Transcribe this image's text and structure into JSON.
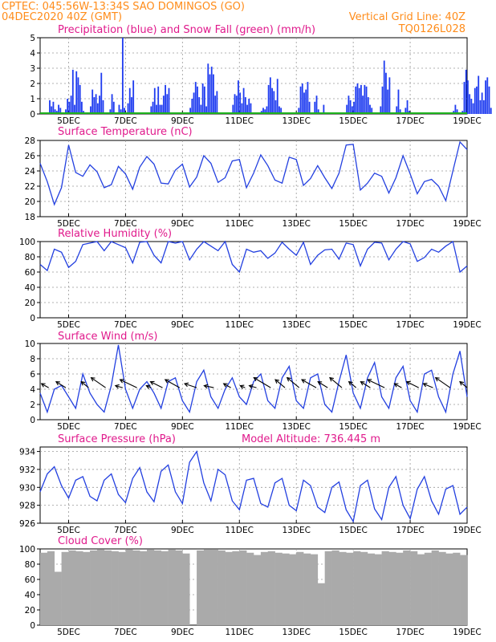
{
  "header": {
    "line1_left": "CPTEC:  045:56W-13:34S  SAO DOMINGOS (GO)",
    "line2_left": "04DEC2020 40Z (GMT)",
    "line2_right": "Vertical Grid Line: 40Z",
    "line3_right": "TQ0126L028"
  },
  "colors": {
    "header": "#ff8c1a",
    "title": "#e01a8c",
    "precip": "#1f3cf0",
    "snow": "#1db31d",
    "line": "#2340e0",
    "cloud": "#aaaaaa",
    "wind_arrow": "#000000"
  },
  "x_axis": {
    "labels": [
      "5DEC",
      "7DEC",
      "9DEC",
      "11DEC",
      "13DEC",
      "15DEC",
      "17DEC",
      "19DEC"
    ],
    "range_days": [
      4,
      19
    ]
  },
  "chart_data": [
    {
      "id": "precip",
      "type": "bar",
      "title": "Precipitation (blue) and Snow Fall (green) (mm/h)",
      "ylim": [
        0,
        5
      ],
      "yticks": [
        "0",
        "1",
        "2",
        "3",
        "4",
        "5"
      ],
      "series": [
        {
          "name": "Precipitation",
          "x_start_day": 4.0,
          "step_days": 0.0625,
          "values": [
            0,
            0,
            0,
            0,
            0,
            0.9,
            0.5,
            0.8,
            0.3,
            0.2,
            0.6,
            0.4,
            0,
            0,
            0.3,
            1.0,
            0.8,
            1.2,
            2.9,
            0.6,
            2.8,
            2.4,
            1.9,
            0.8,
            0.2,
            0,
            0,
            0,
            0.5,
            1.6,
            1.1,
            1.3,
            0.7,
            1.2,
            2.7,
            0.9,
            0,
            0,
            0,
            0.3,
            1.3,
            0.8,
            0,
            0,
            0.6,
            0.3,
            5.0,
            0.4,
            0,
            0.7,
            1.7,
            1.1,
            2.2,
            0,
            0,
            0,
            0,
            0,
            0,
            0,
            0,
            0,
            0.5,
            0.8,
            1.7,
            0.6,
            1.8,
            0.6,
            0.6,
            1.2,
            1.9,
            1.3,
            1.7,
            0,
            0,
            0,
            0,
            0,
            0,
            0,
            0,
            0,
            0,
            0,
            0.4,
            1.0,
            1.4,
            2.1,
            1.8,
            1.1,
            0.6,
            2.0,
            1.8,
            0.5,
            3.3,
            2.6,
            3.1,
            2.6,
            1.2,
            1.5,
            0,
            0,
            0,
            0,
            0,
            0,
            0,
            0,
            0.6,
            1.3,
            1.2,
            2.2,
            1.4,
            0.7,
            1.7,
            1.1,
            0.6,
            1.0,
            0.7,
            0,
            0,
            0,
            0,
            0,
            0.2,
            0.4,
            0.3,
            0.5,
            1.9,
            2.4,
            1.7,
            1.5,
            0.9,
            2.3,
            0.5,
            0.4,
            0,
            0,
            0,
            0,
            0,
            0,
            0,
            0,
            0,
            0.4,
            1.8,
            2.0,
            1.4,
            1.6,
            2.1,
            0.8,
            0,
            0,
            0.8,
            1.2,
            0.3,
            0,
            0,
            0.6,
            0,
            0,
            0,
            0,
            0,
            0,
            0,
            0,
            0,
            0,
            0,
            0,
            0.6,
            1.2,
            0.9,
            0.5,
            0.8,
            1.8,
            2.0,
            1.7,
            1.9,
            1.2,
            1.9,
            1.8,
            1.1,
            0.6,
            0.4,
            0,
            0,
            0,
            0,
            0.5,
            1.8,
            3.5,
            2.7,
            1.6,
            2.4,
            0,
            0,
            0,
            0.5,
            1.6,
            0.3,
            0,
            0,
            0.4,
            0.9,
            0.2,
            0,
            0,
            0,
            0,
            0,
            0,
            0,
            0,
            0,
            0,
            0,
            0,
            0,
            0,
            0,
            0,
            0,
            0,
            0,
            0,
            0,
            0,
            0,
            0,
            0.2,
            0.6,
            0.3,
            0,
            0,
            0.2,
            2.1,
            2.9,
            2.2,
            1.3,
            1.0,
            0.7,
            1.7,
            1.8,
            2.5,
            0.9,
            1.4,
            0.9,
            2.2,
            2.4,
            1.8,
            0.4,
            0,
            0,
            0,
            0,
            0,
            0,
            0.8,
            1.8,
            2.8,
            2.2,
            1.0,
            1.5,
            0.9,
            0.4,
            0,
            0.6,
            0.9,
            2.9,
            1.6,
            0.3,
            0,
            0,
            0,
            0,
            0,
            0.4,
            1.4,
            2.3,
            1.6,
            1.3,
            2.7,
            1.8,
            2.1,
            0.9,
            2.6,
            2.0,
            1.2,
            0,
            0,
            0,
            0.4,
            0.2,
            0.6,
            0,
            0,
            0,
            0,
            0,
            0,
            0,
            0.7,
            1.8,
            0.4,
            0.3,
            0.6,
            0.5,
            0,
            0,
            0,
            0,
            0,
            0,
            0,
            0,
            0,
            0,
            0,
            0,
            0,
            0.2,
            0.6,
            0.7,
            0.2
          ],
          "color": "#1f3cf0"
        },
        {
          "name": "Snow Fall",
          "values_all": 0,
          "color": "#1db31d"
        }
      ]
    },
    {
      "id": "temperature",
      "type": "line",
      "title": "Surface Temperature (nC)",
      "ylim": [
        18,
        28
      ],
      "yticks": [
        "18",
        "20",
        "22",
        "24",
        "26",
        "28"
      ],
      "x": [
        4.0,
        4.25,
        4.5,
        4.75,
        5.0,
        5.25,
        5.5,
        5.75,
        6.0,
        6.25,
        6.5,
        6.75,
        7.0,
        7.25,
        7.5,
        7.75,
        8.0,
        8.25,
        8.5,
        8.75,
        9.0,
        9.25,
        9.5,
        9.75,
        10.0,
        10.25,
        10.5,
        10.75,
        11.0,
        11.25,
        11.5,
        11.75,
        12.0,
        12.25,
        12.5,
        12.75,
        13.0,
        13.25,
        13.5,
        13.75,
        14.0,
        14.25,
        14.5,
        14.75,
        15.0,
        15.25,
        15.5,
        15.75,
        16.0,
        16.25,
        16.5,
        16.75,
        17.0,
        17.25,
        17.5,
        17.75,
        18.0,
        18.25,
        18.5,
        18.75,
        19.0
      ],
      "y": [
        25.0,
        22.6,
        19.6,
        21.8,
        27.4,
        23.8,
        23.3,
        24.8,
        23.9,
        21.8,
        22.2,
        24.6,
        23.6,
        21.6,
        24.5,
        25.9,
        24.9,
        22.4,
        22.3,
        24.1,
        24.9,
        21.9,
        23.2,
        26.0,
        25.0,
        22.5,
        23.1,
        25.3,
        25.5,
        21.8,
        23.7,
        26.1,
        24.7,
        22.8,
        22.4,
        25.8,
        25.5,
        22.1,
        23.0,
        24.7,
        23.1,
        21.7,
        23.7,
        27.4,
        27.5,
        21.5,
        22.4,
        23.7,
        23.3,
        21.1,
        23.1,
        26.0,
        23.6,
        21.0,
        22.6,
        22.9,
        22.0,
        20.1,
        24.0,
        27.8,
        26.8
      ]
    },
    {
      "id": "humidity",
      "type": "line",
      "title": "Relative Humidity (%)",
      "ylim": [
        0,
        100
      ],
      "yticks": [
        "0",
        "20",
        "40",
        "60",
        "80",
        "100"
      ],
      "x": [
        4.0,
        4.25,
        4.5,
        4.75,
        5.0,
        5.25,
        5.5,
        5.75,
        6.0,
        6.25,
        6.5,
        6.75,
        7.0,
        7.25,
        7.5,
        7.75,
        8.0,
        8.25,
        8.5,
        8.75,
        9.0,
        9.25,
        9.5,
        9.75,
        10.0,
        10.25,
        10.5,
        10.75,
        11.0,
        11.25,
        11.5,
        11.75,
        12.0,
        12.25,
        12.5,
        12.75,
        13.0,
        13.25,
        13.5,
        13.75,
        14.0,
        14.25,
        14.5,
        14.75,
        15.0,
        15.25,
        15.5,
        15.75,
        16.0,
        16.25,
        16.5,
        16.75,
        17.0,
        17.25,
        17.5,
        17.75,
        18.0,
        18.25,
        18.5,
        18.75,
        19.0
      ],
      "y": [
        70,
        62,
        90,
        86,
        66,
        74,
        96,
        98,
        100,
        88,
        100,
        96,
        92,
        72,
        99,
        100,
        82,
        72,
        100,
        98,
        100,
        76,
        90,
        100,
        94,
        88,
        100,
        70,
        60,
        90,
        86,
        88,
        78,
        85,
        99,
        90,
        82,
        99,
        70,
        82,
        89,
        90,
        77,
        98,
        96,
        68,
        90,
        99,
        98,
        76,
        90,
        100,
        97,
        74,
        79,
        90,
        86,
        94,
        100,
        60,
        68
      ]
    },
    {
      "id": "wind",
      "type": "line",
      "title": "Surface Wind (m/s)",
      "ylim": [
        0,
        10
      ],
      "yticks": [
        "0",
        "2",
        "4",
        "6",
        "8",
        "10"
      ],
      "x": [
        4.0,
        4.25,
        4.5,
        4.75,
        5.0,
        5.25,
        5.5,
        5.75,
        6.0,
        6.25,
        6.5,
        6.75,
        7.0,
        7.25,
        7.5,
        7.75,
        8.0,
        8.25,
        8.5,
        8.75,
        9.0,
        9.25,
        9.5,
        9.75,
        10.0,
        10.25,
        10.5,
        10.75,
        11.0,
        11.25,
        11.5,
        11.75,
        12.0,
        12.25,
        12.5,
        12.75,
        13.0,
        13.25,
        13.5,
        13.75,
        14.0,
        14.25,
        14.5,
        14.75,
        15.0,
        15.25,
        15.5,
        15.75,
        16.0,
        16.25,
        16.5,
        16.75,
        17.0,
        17.25,
        17.5,
        17.75,
        18.0,
        18.25,
        18.5,
        18.75,
        19.0
      ],
      "y": [
        3.5,
        1.0,
        4.0,
        4.5,
        3.0,
        1.5,
        6.0,
        3.5,
        2.0,
        1.0,
        4.5,
        9.8,
        4.0,
        1.5,
        4.0,
        5.0,
        3.5,
        1.5,
        5.0,
        5.5,
        2.5,
        1.0,
        5.0,
        6.5,
        3.0,
        1.5,
        4.0,
        5.5,
        3.0,
        2.0,
        5.0,
        6.0,
        2.5,
        1.5,
        5.5,
        7.0,
        2.5,
        1.5,
        5.5,
        6.0,
        2.0,
        1.0,
        5.0,
        8.5,
        3.5,
        1.5,
        5.5,
        7.5,
        3.0,
        1.5,
        5.5,
        7.0,
        2.5,
        1.0,
        6.0,
        6.5,
        3.0,
        1.0,
        6.0,
        9.0,
        3.0
      ],
      "arrows": {
        "x": [
          4.3,
          4.9,
          5.7,
          6.3,
          6.9,
          7.4,
          7.9,
          8.3,
          8.9,
          9.5,
          10.1,
          10.7,
          11.2,
          11.6,
          12.1,
          12.6,
          13.1,
          13.7,
          14.1,
          14.6,
          15.1,
          15.6,
          16.1,
          16.7,
          17.3,
          17.8,
          18.4,
          19.0
        ],
        "u": [
          -1.5,
          -2.0,
          -1.5,
          -3.0,
          -1.5,
          -3.5,
          -1.0,
          -2.5,
          -3.0,
          -2.5,
          -2.0,
          -1.5,
          -1.0,
          -1.5,
          -3.5,
          -2.0,
          -2.5,
          -3.0,
          -2.0,
          -2.5,
          -1.5,
          -2.0,
          -3.5,
          -1.5,
          -2.5,
          -2.0,
          -3.0,
          -1.5
        ],
        "v": [
          1.0,
          1.5,
          1.5,
          2.5,
          0.5,
          2.0,
          0.5,
          1.5,
          2.0,
          1.0,
          0.5,
          1.0,
          0.5,
          0.5,
          2.5,
          2.0,
          2.5,
          2.0,
          1.5,
          2.5,
          1.5,
          1.5,
          2.0,
          1.0,
          1.5,
          1.0,
          2.5,
          1.5
        ]
      }
    },
    {
      "id": "pressure",
      "type": "line",
      "title": "Surface Pressure (hPa)",
      "subtitle": "Model Altitude: 736.445 m",
      "ylim": [
        926,
        934.5
      ],
      "yticks": [
        "926",
        "928",
        "930",
        "932",
        "934"
      ],
      "x": [
        4.0,
        4.25,
        4.5,
        4.75,
        5.0,
        5.25,
        5.5,
        5.75,
        6.0,
        6.25,
        6.5,
        6.75,
        7.0,
        7.25,
        7.5,
        7.75,
        8.0,
        8.25,
        8.5,
        8.75,
        9.0,
        9.25,
        9.5,
        9.75,
        10.0,
        10.25,
        10.5,
        10.75,
        11.0,
        11.25,
        11.5,
        11.75,
        12.0,
        12.25,
        12.5,
        12.75,
        13.0,
        13.25,
        13.5,
        13.75,
        14.0,
        14.25,
        14.5,
        14.75,
        15.0,
        15.25,
        15.5,
        15.75,
        16.0,
        16.25,
        16.5,
        16.75,
        17.0,
        17.25,
        17.5,
        17.75,
        18.0,
        18.25,
        18.5,
        18.75,
        19.0
      ],
      "y": [
        929.5,
        931.5,
        932.3,
        930.2,
        928.8,
        930.8,
        931.2,
        929.0,
        928.5,
        930.8,
        931.5,
        929.2,
        928.3,
        931.0,
        932.2,
        929.5,
        928.4,
        931.8,
        932.5,
        929.5,
        928.2,
        932.8,
        934.0,
        930.5,
        928.5,
        932.0,
        931.4,
        928.5,
        927.5,
        930.8,
        931.0,
        928.2,
        927.8,
        930.5,
        931.0,
        928.0,
        927.4,
        930.8,
        930.2,
        927.8,
        927.2,
        930.0,
        930.6,
        927.5,
        926.2,
        930.2,
        930.8,
        927.6,
        926.4,
        930.0,
        931.2,
        928.0,
        926.5,
        929.8,
        931.2,
        928.5,
        927.0,
        929.8,
        930.2,
        927.0,
        927.8
      ]
    },
    {
      "id": "cloud",
      "type": "area",
      "title": "Cloud Cover (%)",
      "ylim": [
        0,
        100
      ],
      "yticks": [
        "0",
        "20",
        "40",
        "60",
        "80",
        "100"
      ],
      "x": [
        4.0,
        4.25,
        4.5,
        4.75,
        5.0,
        5.25,
        5.5,
        5.75,
        6.0,
        6.25,
        6.5,
        6.75,
        7.0,
        7.25,
        7.5,
        7.75,
        8.0,
        8.25,
        8.5,
        8.75,
        9.0,
        9.25,
        9.5,
        9.75,
        10.0,
        10.25,
        10.5,
        10.75,
        11.0,
        11.25,
        11.5,
        11.75,
        12.0,
        12.25,
        12.5,
        12.75,
        13.0,
        13.25,
        13.5,
        13.75,
        14.0,
        14.25,
        14.5,
        14.75,
        15.0,
        15.25,
        15.5,
        15.75,
        16.0,
        16.25,
        16.5,
        16.75,
        17.0,
        17.25,
        17.5,
        17.75,
        18.0,
        18.25,
        18.5,
        18.75,
        19.0
      ],
      "y": [
        95,
        97,
        70,
        96,
        98,
        97,
        96,
        98,
        99,
        98,
        97,
        96,
        99,
        98,
        97,
        99,
        98,
        97,
        99,
        98,
        94,
        0,
        98,
        99,
        99,
        98,
        96,
        97,
        98,
        95,
        92,
        96,
        97,
        95,
        94,
        93,
        96,
        94,
        93,
        55,
        97,
        98,
        96,
        95,
        97,
        96,
        94,
        93,
        97,
        96,
        95,
        98,
        97,
        93,
        95,
        98,
        96,
        94,
        95,
        92,
        96
      ]
    }
  ]
}
